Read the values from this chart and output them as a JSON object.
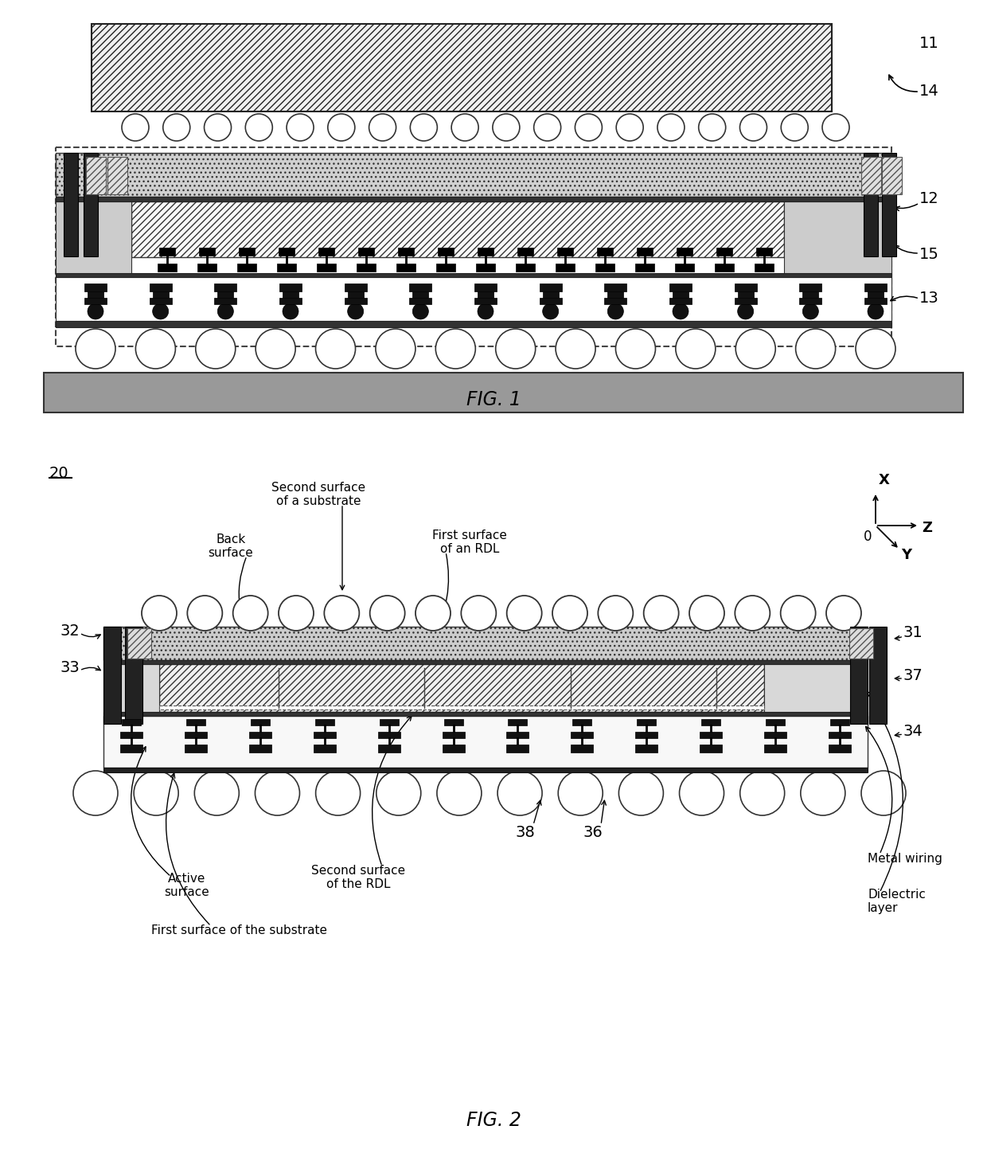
{
  "fig_width": 12.4,
  "fig_height": 14.53,
  "bg_color": "#ffffff",
  "fig1_label": "FIG. 1",
  "fig2_label": "FIG. 2",
  "label_11": "11",
  "label_12": "12",
  "label_13": "13",
  "label_14": "14",
  "label_15": "15",
  "label_20": "20",
  "label_31": "31",
  "label_32": "32",
  "label_33": "33",
  "label_34": "34",
  "label_36": "36",
  "label_37": "37",
  "label_38": "38",
  "text_second_surface_substrate": "Second surface\nof a substrate",
  "text_back_surface": "Back\nsurface",
  "text_first_surface_rdl": "First surface\nof an RDL",
  "text_active_surface": "Active\nsurface",
  "text_second_surface_rdl": "Second surface\nof the RDL",
  "text_first_surface_substrate": "First surface of the substrate",
  "text_metal_wiring": "Metal wiring",
  "text_dielectric_layer": "Dielectric\nlayer",
  "dark_gray": "#333333",
  "black": "#000000",
  "white": "#ffffff",
  "light_gray": "#c8c8c8",
  "medium_gray": "#999999",
  "dot_fill": "#f5f5f5"
}
